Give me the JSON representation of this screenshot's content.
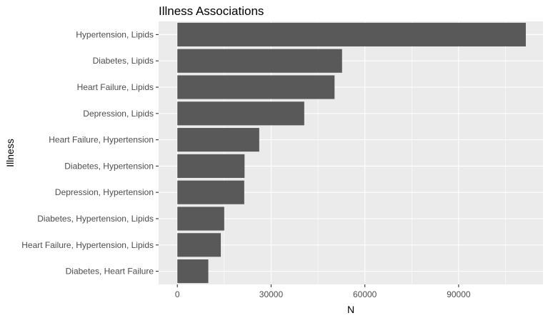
{
  "chart_data": {
    "type": "bar",
    "orientation": "horizontal",
    "title": "Illness Associations",
    "xlabel": "N",
    "ylabel": "Illness",
    "categories": [
      "Hypertension, Lipids",
      "Diabetes, Lipids",
      "Heart Failure, Lipids",
      "Depression, Lipids",
      "Heart Failure, Hypertension",
      "Diabetes, Hypertension",
      "Depression, Hypertension",
      "Diabetes, Hypertension, Lipids",
      "Heart Failure, Hypertension, Lipids",
      "Diabetes, Heart Failure"
    ],
    "values": [
      111500,
      52700,
      50300,
      40600,
      26200,
      21500,
      21400,
      15000,
      13900,
      9900
    ],
    "xlim": [
      -6000,
      117000
    ],
    "xticks": [
      0,
      30000,
      60000,
      90000
    ],
    "xtick_labels": [
      "0",
      "30000",
      "60000",
      "90000"
    ],
    "grid": true,
    "colors": {
      "bar": "#595959",
      "panel": "#ebebeb",
      "grid_major": "#ffffff",
      "tick_text": "#4d4d4d"
    }
  }
}
